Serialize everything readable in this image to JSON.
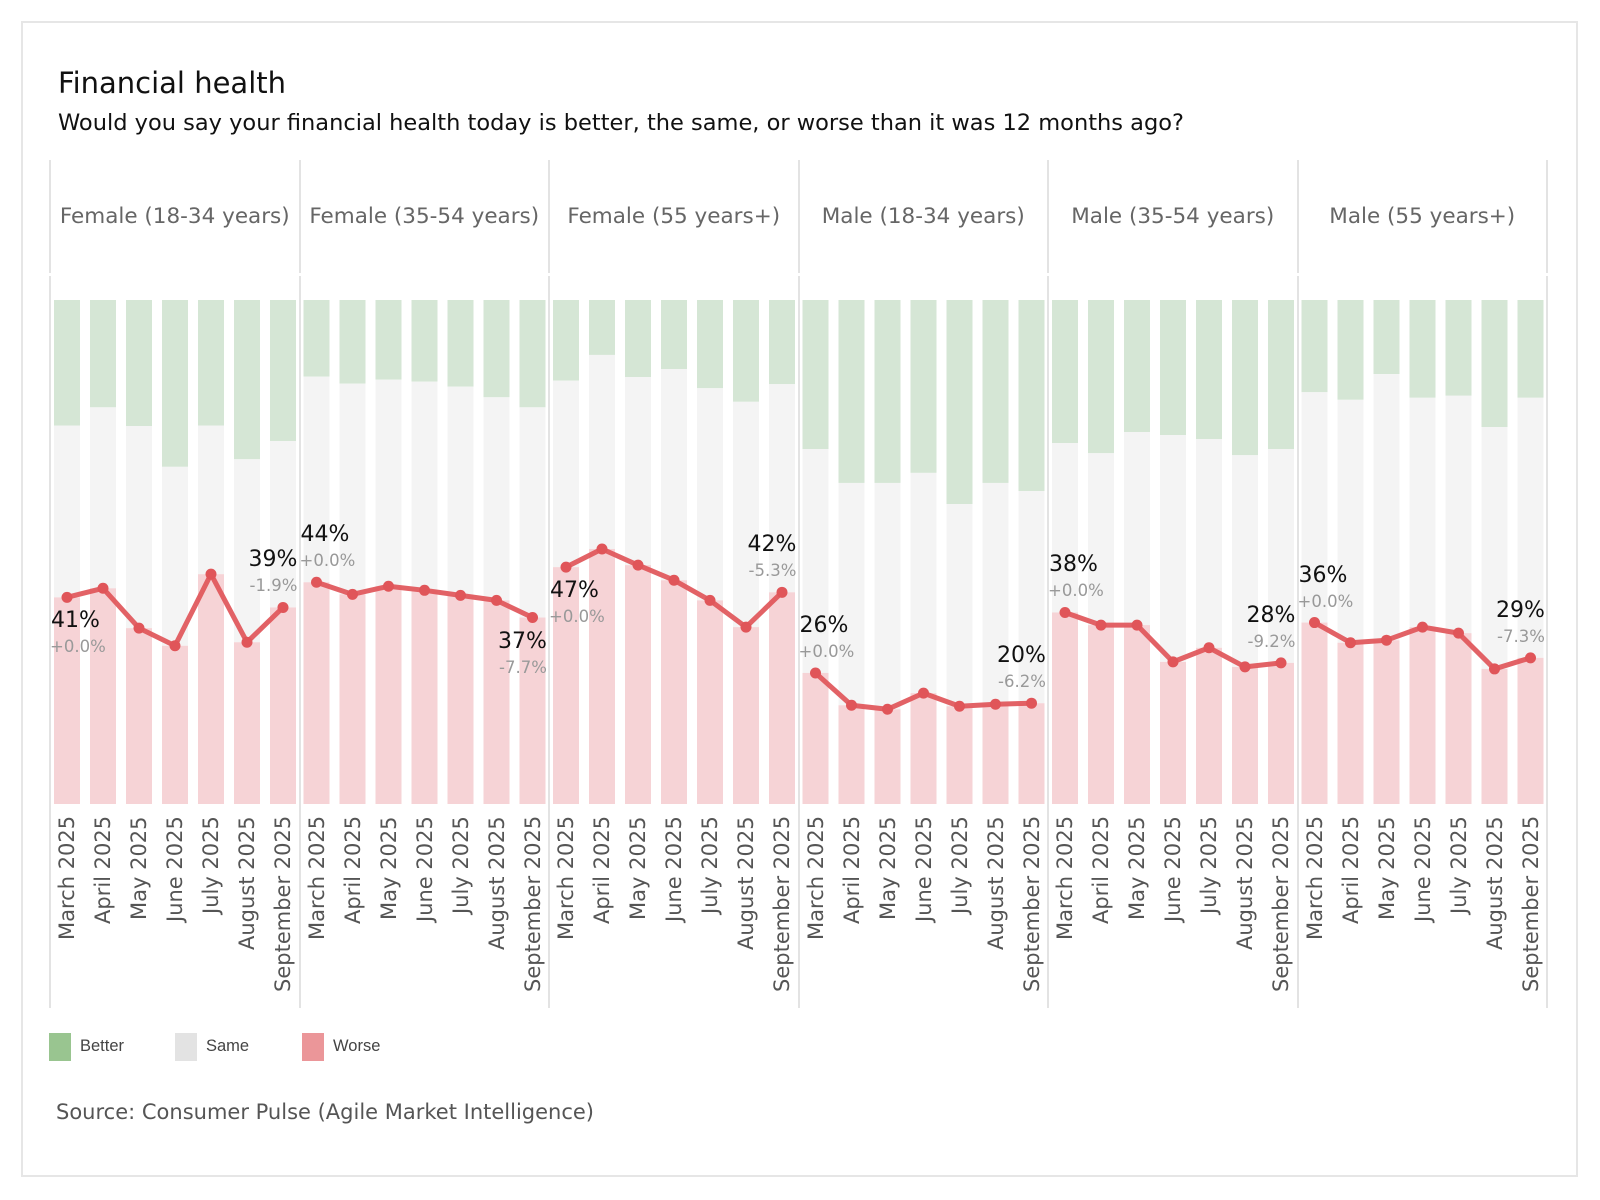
{
  "title": "Financial health",
  "subtitle": "Would you say your financial health today is better, the same, or worse than it was 12 months ago?",
  "source": "Source: Consumer Pulse (Agile Market Intelligence)",
  "colors": {
    "better_bar": "#d5e6d5",
    "same_bar": "#f4f4f4",
    "worse_bar": "#f6d3d6",
    "worse_line": "#e05559",
    "legend_better": "#99c590",
    "legend_same": "#e3e3e3",
    "legend_worse": "#eb9699"
  },
  "legend": [
    {
      "label": "Better",
      "color_key": "legend_better"
    },
    {
      "label": "Same",
      "color_key": "legend_same"
    },
    {
      "label": "Worse",
      "color_key": "legend_worse"
    }
  ],
  "chart_data": {
    "type": "bar",
    "subtype": "stacked-100-percent bar with worse-share line overlay, faceted by segment",
    "title": "Financial health",
    "subtitle": "Would you say your financial health today is better, the same, or worse than it was 12 months ago?",
    "categories": [
      "March 2025",
      "April 2025",
      "May 2025",
      "June 2025",
      "July 2025",
      "August 2025",
      "September 2025"
    ],
    "stack_order_bottom_to_top": [
      "Worse",
      "Same",
      "Better"
    ],
    "ylim": [
      0,
      100
    ],
    "y_unit": "percent of respondents",
    "grid": false,
    "legend_position": "bottom-left",
    "panels": [
      {
        "name": "Female (18-34 years)",
        "worse": [
          41,
          42.8,
          34.9,
          31.4,
          45.6,
          32.1,
          39
        ],
        "better": [
          24.9,
          21.3,
          25,
          33.1,
          24.9,
          31.6,
          28
        ],
        "labels": {
          "first": {
            "value": "41%",
            "change": "+0.0%",
            "placement": "below"
          },
          "last": {
            "value": "39%",
            "change": "-1.9%",
            "placement": "above"
          }
        }
      },
      {
        "name": "Female (35-54 years)",
        "worse": [
          44,
          41.6,
          43.2,
          42.4,
          41.4,
          40.4,
          37
        ],
        "better": [
          15.2,
          16.6,
          15.8,
          16.2,
          17.2,
          19.3,
          21.3
        ],
        "labels": {
          "first": {
            "value": "44%",
            "change": "+0.0%",
            "placement": "above"
          },
          "last": {
            "value": "37%",
            "change": "-7.7%",
            "placement": "below"
          }
        }
      },
      {
        "name": "Female (55 years+)",
        "worse": [
          47,
          50.6,
          47.4,
          44.4,
          40.4,
          35.1,
          42
        ],
        "better": [
          16,
          10.9,
          15.3,
          13.7,
          17.5,
          20.2,
          16.7
        ],
        "labels": {
          "first": {
            "value": "47%",
            "change": "+0.0%",
            "placement": "below"
          },
          "last": {
            "value": "42%",
            "change": "-5.3%",
            "placement": "above"
          }
        }
      },
      {
        "name": "Male (18-34 years)",
        "worse": [
          26,
          19.6,
          18.8,
          22,
          19.4,
          19.8,
          20
        ],
        "better": [
          29.6,
          36.3,
          36.3,
          34.3,
          40.5,
          36.3,
          37.9
        ],
        "labels": {
          "first": {
            "value": "26%",
            "change": "+0.0%",
            "placement": "above"
          },
          "last": {
            "value": "20%",
            "change": "-6.2%",
            "placement": "above"
          }
        }
      },
      {
        "name": "Male (35-54 years)",
        "worse": [
          38,
          35.5,
          35.5,
          28.2,
          31,
          27.2,
          28
        ],
        "better": [
          28.4,
          30.4,
          26.2,
          26.8,
          27.6,
          30.8,
          29.6
        ],
        "labels": {
          "first": {
            "value": "38%",
            "change": "+0.0%",
            "placement": "above"
          },
          "last": {
            "value": "28%",
            "change": "-9.2%",
            "placement": "above"
          }
        }
      },
      {
        "name": "Male (55 years+)",
        "worse": [
          36,
          32,
          32.5,
          35.1,
          33.9,
          26.8,
          29
        ],
        "better": [
          18.3,
          19.8,
          14.7,
          19.4,
          19,
          25.2,
          19.4
        ],
        "labels": {
          "first": {
            "value": "36%",
            "change": "+0.0%",
            "placement": "above"
          },
          "last": {
            "value": "29%",
            "change": "-7.3%",
            "placement": "above"
          }
        }
      }
    ]
  }
}
